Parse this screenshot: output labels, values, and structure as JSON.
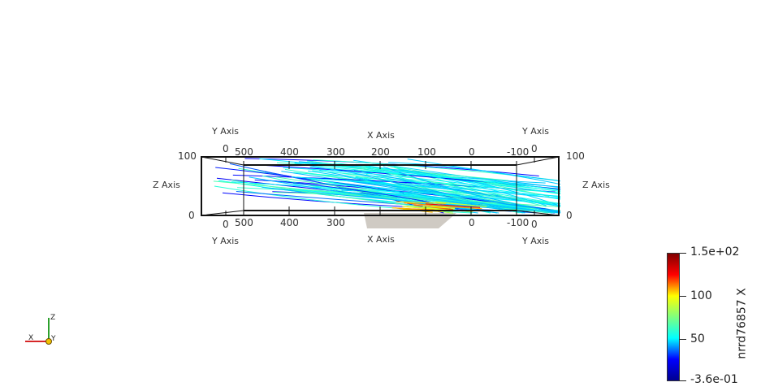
{
  "render_view": {
    "axes_grid": {
      "y_axis_title": "Y Axis",
      "x_axis_title": "X Axis",
      "z_axis_title": "Z Axis",
      "x_ticks": [
        "500",
        "400",
        "300",
        "200",
        "100",
        "0",
        "-100"
      ],
      "x_ticks_bottom": [
        "500",
        "400",
        "300",
        "0",
        "-100"
      ],
      "y_tick": "0",
      "z_ticks": [
        "100",
        "0"
      ]
    },
    "streamlines_colormap": "jet",
    "surface_color": "#cfcac3"
  },
  "scalar_bar": {
    "title": "nrrd76857 X",
    "max_label": "1.5e+02",
    "mid_high_label": "100",
    "mid_low_label": "50",
    "min_label": "-3.6e-01",
    "gradient": [
      "#00008f",
      "#0000ff",
      "#00ffff",
      "#7fff7f",
      "#ffff00",
      "#ff0000",
      "#800000"
    ]
  },
  "orientation_axes": {
    "x_label": "X",
    "y_label": "Y",
    "z_label": "Z",
    "x_color": "#d62728",
    "y_color": "#f2c200",
    "z_color": "#2ca02c"
  }
}
